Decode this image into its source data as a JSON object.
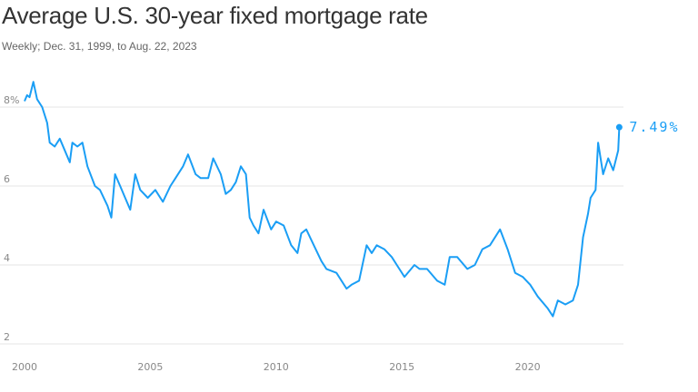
{
  "header": {
    "title": "Average U.S. 30-year fixed mortgage rate",
    "subtitle": "Weekly; Dec. 31, 1999, to Aug. 22, 2023"
  },
  "colors": {
    "line": "#1a9ef5",
    "grid": "#e6e6e6",
    "text": "#333333"
  },
  "chart_data": {
    "type": "line",
    "title": "Average U.S. 30-year fixed mortgage rate",
    "subtitle": "Weekly; Dec. 31, 1999, to Aug. 22, 2023",
    "xlim": [
      2000,
      2023.7
    ],
    "ylim": [
      2,
      8.8
    ],
    "grid": "horizontal",
    "x_ticks": [
      2000,
      2005,
      2010,
      2015,
      2020
    ],
    "x_tick_labels": [
      "2000",
      "2005",
      "2010",
      "2015",
      "2020"
    ],
    "y_ticks": [
      2,
      4,
      6,
      8
    ],
    "y_tick_labels": [
      "2",
      "4",
      "6",
      "8%"
    ],
    "end_label": "7.49%",
    "series": [
      {
        "x": [
          2000.0,
          2000.1,
          2000.2,
          2000.35,
          2000.5,
          2000.7,
          2000.9,
          2001.0,
          2001.2,
          2001.4,
          2001.6,
          2001.8,
          2001.9,
          2002.1,
          2002.3,
          2002.5,
          2002.8,
          2003.0,
          2003.3,
          2003.45,
          2003.6,
          2003.8,
          2004.0,
          2004.2,
          2004.4,
          2004.6,
          2004.9,
          2005.2,
          2005.5,
          2005.8,
          2006.0,
          2006.3,
          2006.5,
          2006.8,
          2007.0,
          2007.3,
          2007.5,
          2007.8,
          2008.0,
          2008.2,
          2008.4,
          2008.6,
          2008.8,
          2008.95,
          2009.1,
          2009.3,
          2009.5,
          2009.8,
          2010.0,
          2010.3,
          2010.6,
          2010.85,
          2011.0,
          2011.2,
          2011.5,
          2011.8,
          2012.0,
          2012.4,
          2012.8,
          2013.0,
          2013.3,
          2013.6,
          2013.8,
          2014.0,
          2014.3,
          2014.6,
          2014.9,
          2015.1,
          2015.5,
          2015.7,
          2016.0,
          2016.4,
          2016.7,
          2016.9,
          2017.2,
          2017.6,
          2017.9,
          2018.2,
          2018.5,
          2018.9,
          2019.2,
          2019.5,
          2019.8,
          2020.1,
          2020.4,
          2020.8,
          2021.0,
          2021.2,
          2021.5,
          2021.8,
          2022.0,
          2022.2,
          2022.4,
          2022.5,
          2022.7,
          2022.8,
          2023.0,
          2023.2,
          2023.4,
          2023.6,
          2023.64
        ],
        "y": [
          8.15,
          8.3,
          8.25,
          8.64,
          8.2,
          8.0,
          7.6,
          7.1,
          7.0,
          7.2,
          6.9,
          6.6,
          7.1,
          7.0,
          7.1,
          6.5,
          6.0,
          5.9,
          5.5,
          5.2,
          6.3,
          6.0,
          5.7,
          5.4,
          6.3,
          5.9,
          5.7,
          5.9,
          5.6,
          6.0,
          6.2,
          6.5,
          6.8,
          6.3,
          6.2,
          6.2,
          6.7,
          6.3,
          5.8,
          5.9,
          6.1,
          6.5,
          6.3,
          5.2,
          5.0,
          4.8,
          5.4,
          4.9,
          5.1,
          5.0,
          4.5,
          4.3,
          4.8,
          4.9,
          4.5,
          4.1,
          3.9,
          3.8,
          3.4,
          3.5,
          3.6,
          4.5,
          4.3,
          4.5,
          4.4,
          4.2,
          3.9,
          3.7,
          4.0,
          3.9,
          3.9,
          3.6,
          3.5,
          4.2,
          4.2,
          3.9,
          4.0,
          4.4,
          4.5,
          4.9,
          4.4,
          3.8,
          3.7,
          3.5,
          3.2,
          2.9,
          2.7,
          3.1,
          3.0,
          3.1,
          3.5,
          4.7,
          5.3,
          5.7,
          5.9,
          7.1,
          6.3,
          6.7,
          6.4,
          6.9,
          7.49
        ]
      }
    ]
  }
}
